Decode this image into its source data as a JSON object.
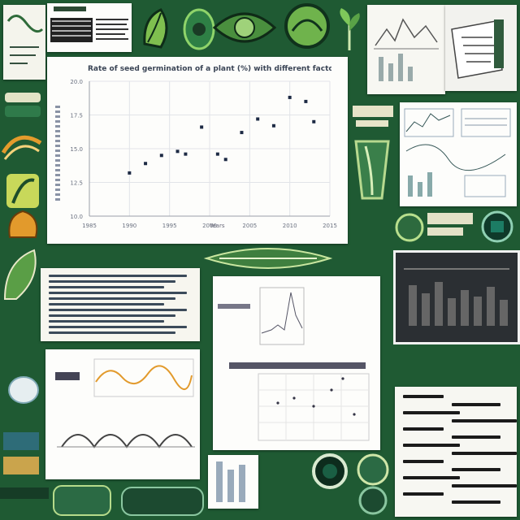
{
  "main_chart": {
    "title": "Rate of seed germination of a plant (%) with different factors",
    "y_ticks": [
      "10.0",
      "12.5",
      "15.0",
      "17.5",
      "20.0"
    ],
    "x_ticks": [
      "1985",
      "1990",
      "1995",
      "2000",
      "2005",
      "2010",
      "2015"
    ],
    "xlabel": "Years"
  },
  "chart_data": {
    "type": "scatter",
    "title": "Rate of seed germination of a plant (%) with different factors",
    "xlabel": "Years",
    "ylabel": "",
    "xlim": [
      1985,
      2015
    ],
    "ylim": [
      10,
      20
    ],
    "x": [
      1990,
      1992,
      1994,
      1996,
      1997,
      1999,
      2001,
      2002,
      2004,
      2006,
      2008,
      2010,
      2012,
      2013
    ],
    "y": [
      13.2,
      13.9,
      14.5,
      14.8,
      14.6,
      16.6,
      14.6,
      14.2,
      16.2,
      17.2,
      16.7,
      18.8,
      18.5,
      17.0
    ],
    "grid": true
  },
  "colors": {
    "board_green": "#1f5a33",
    "accent_orange": "#e29a2c",
    "point_navy": "#1d2a44"
  },
  "stickers": [
    {
      "name": "leaf-icon"
    },
    {
      "name": "plant-pod-icon"
    },
    {
      "name": "seed-icon"
    },
    {
      "name": "circle-badge-icon"
    }
  ]
}
